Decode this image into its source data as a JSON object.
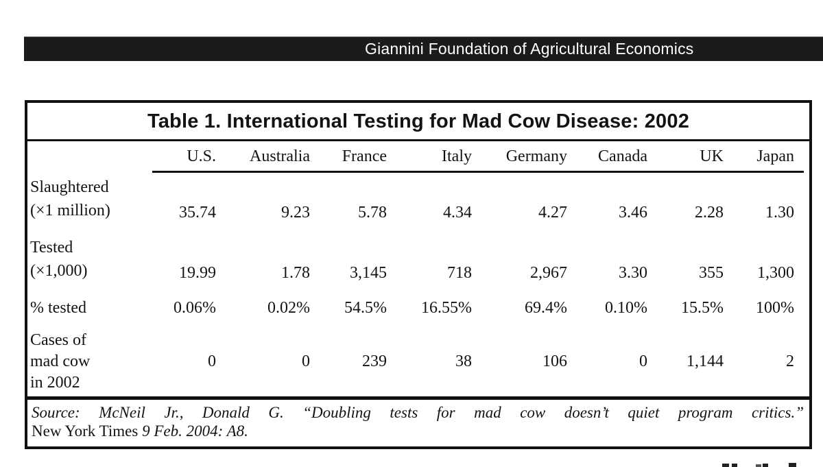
{
  "header_bar": {
    "text": "Giannini Foundation of Agricultural Economics",
    "bg_color": "#1b1b1b",
    "text_color": "#ffffff"
  },
  "table": {
    "title": "Table 1. International Testing for Mad Cow Disease: 2002",
    "columns": [
      "U.S.",
      "Australia",
      "France",
      "Italy",
      "Germany",
      "Canada",
      "UK",
      "Japan"
    ],
    "rows": [
      {
        "label_lines": [
          "Slaughtered",
          "(×1 million)"
        ],
        "values": [
          "35.74",
          "9.23",
          "5.78",
          "4.34",
          "4.27",
          "3.46",
          "2.28",
          "1.30"
        ]
      },
      {
        "label_lines": [
          "Tested",
          "(×1,000)"
        ],
        "values": [
          "19.99",
          "1.78",
          "3,145",
          "718",
          "2,967",
          "3.30",
          "355",
          "1,300"
        ]
      },
      {
        "label_lines": [
          "% tested"
        ],
        "values": [
          "0.06%",
          "0.02%",
          "54.5%",
          "16.55%",
          "69.4%",
          "0.10%",
          "15.5%",
          "100%"
        ]
      },
      {
        "label_lines": [
          "Cases of",
          "mad cow",
          "in 2002"
        ],
        "values": [
          "0",
          "0",
          "239",
          "38",
          "106",
          "0",
          "1,144",
          "2"
        ]
      }
    ],
    "source": {
      "line1": "Source: McNeil Jr., Donald G. “Doubling tests for mad cow doesn’t quiet program critics.”",
      "line2_roman": "New York Times",
      "line2_italic": " 9 Feb. 2004: A8."
    }
  }
}
